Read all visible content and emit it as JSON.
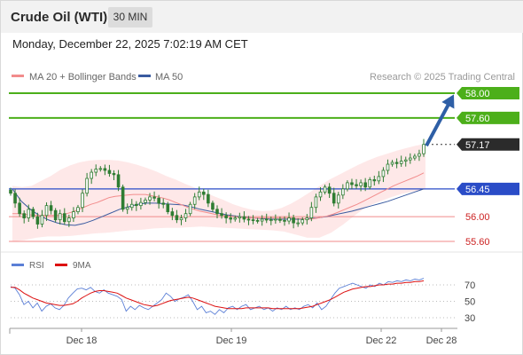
{
  "header": {
    "title": "Crude Oil (WTI)",
    "interval": "30 MIN",
    "datetime": "Monday, December 22, 2025 7:02:19 AM CET"
  },
  "colors": {
    "candle": "#2e7d32",
    "ma20": "#f28c8c",
    "ma50": "#3a5ba0",
    "bands_fill": "#fde0e0",
    "resistance": "#4caf1a",
    "pivot": "#2a4cc7",
    "support": "#f08a8a",
    "support_text": "#cc2222",
    "arrow": "#2e5fa6",
    "last_price_box": "#2b2b2b",
    "rsi": "#5b7fd6",
    "rsi_ma": "#dd1111"
  },
  "chart_data": [
    {
      "type": "candlestick",
      "title": "Crude Oil (WTI)",
      "interval": "30 MIN",
      "legend": [
        {
          "label": "MA 20 + Bollinger Bands",
          "color": "#f28c8c"
        },
        {
          "label": "MA 50",
          "color": "#3a5ba0"
        }
      ],
      "watermark": "Research © 2025 Trading Central",
      "xticks": [
        "Dec 18",
        "Dec 19",
        "Dec 22",
        "Dec 28"
      ],
      "ylim": [
        55.45,
        58.2
      ],
      "levels": [
        {
          "label": "58.00",
          "value": 58.0,
          "kind": "resistance"
        },
        {
          "label": "57.60",
          "value": 57.6,
          "kind": "resistance"
        },
        {
          "label": "57.17",
          "value": 57.17,
          "kind": "last"
        },
        {
          "label": "56.45",
          "value": 56.45,
          "kind": "pivot"
        },
        {
          "label": "56.00",
          "value": 56.0,
          "kind": "support"
        },
        {
          "label": "55.60",
          "value": 55.6,
          "kind": "support"
        }
      ],
      "arrow": {
        "from": 57.15,
        "to": 57.98
      },
      "close": [
        56.38,
        56.22,
        56.05,
        55.98,
        56.12,
        56.0,
        55.88,
        56.02,
        56.18,
        56.1,
        55.95,
        56.05,
        55.92,
        55.98,
        56.08,
        56.15,
        56.38,
        56.62,
        56.72,
        56.77,
        56.78,
        56.75,
        56.7,
        56.68,
        56.48,
        56.12,
        56.15,
        56.2,
        56.18,
        56.23,
        56.27,
        56.32,
        56.3,
        56.22,
        56.2,
        56.08,
        56.02,
        55.95,
        55.98,
        56.05,
        56.2,
        56.32,
        56.4,
        56.36,
        56.22,
        56.12,
        56.05,
        56.02,
        55.98,
        55.96,
        55.98,
        56.0,
        55.96,
        55.95,
        55.94,
        55.93,
        55.96,
        55.95,
        55.95,
        55.96,
        55.94,
        55.93,
        55.98,
        55.9,
        55.9,
        55.95,
        55.98,
        56.15,
        56.32,
        56.4,
        56.48,
        56.38,
        56.22,
        56.35,
        56.45,
        56.55,
        56.52,
        56.5,
        56.55,
        56.48,
        56.6,
        56.58,
        56.65,
        56.75,
        56.85,
        56.88,
        56.86,
        56.9,
        56.92,
        56.95,
        56.98,
        57.02,
        57.17
      ],
      "ma20": [
        56.05,
        56.05,
        56.04,
        56.03,
        56.02,
        56.02,
        56.02,
        56.02,
        56.03,
        56.05,
        56.08,
        56.12,
        56.16,
        56.2,
        56.23,
        56.27,
        56.31,
        56.33,
        56.34,
        56.35,
        56.36,
        56.36,
        56.36,
        56.34,
        56.32,
        56.3,
        56.27,
        56.23,
        56.19,
        56.15,
        56.12,
        56.09,
        56.07,
        56.05,
        56.03,
        56.02,
        56.01,
        56.0,
        55.99,
        55.98,
        55.98,
        55.98,
        55.98,
        55.98,
        55.98,
        55.98,
        55.98,
        55.97,
        55.97,
        55.96,
        55.97,
        55.99,
        56.01,
        56.04,
        56.08,
        56.12,
        56.16,
        56.2,
        56.25,
        56.3,
        56.35,
        56.4,
        56.45,
        56.5,
        56.54,
        56.58,
        56.62,
        56.66,
        56.71
      ],
      "bb_upper": [
        56.5,
        56.48,
        56.5,
        56.58,
        56.66,
        56.76,
        56.83,
        56.88,
        56.91,
        56.92,
        56.92,
        56.91,
        56.88,
        56.84,
        56.79,
        56.73,
        56.66,
        56.6,
        56.53,
        56.47,
        56.4,
        56.33,
        56.27,
        56.2,
        56.15,
        56.11,
        56.09,
        56.1,
        56.14,
        56.21,
        56.3,
        56.4,
        56.5,
        56.6,
        56.68,
        56.76,
        56.84,
        56.91,
        56.97,
        57.02,
        57.07,
        57.11,
        57.15,
        57.18
      ],
      "bb_lower": [
        55.6,
        55.62,
        55.66,
        55.68,
        55.68,
        55.69,
        55.71,
        55.73,
        55.74,
        55.76,
        55.78,
        55.79,
        55.81,
        55.82,
        55.82,
        55.83,
        55.84,
        55.83,
        55.82,
        55.81,
        55.8,
        55.79,
        55.78,
        55.76,
        55.71,
        55.66,
        55.66,
        55.74,
        55.87,
        56.02,
        56.16,
        56.24,
        56.31,
        56.37,
        56.41,
        56.44
      ],
      "ma50": [
        56.45,
        56.25,
        56.12,
        56.02,
        55.95,
        55.9,
        55.87,
        55.86,
        55.89,
        55.94,
        56.0,
        56.06,
        56.12,
        56.16,
        56.2,
        56.22,
        56.22,
        56.21,
        56.2,
        56.19,
        56.16,
        56.12,
        56.09,
        56.06,
        56.03,
        56.01,
        55.99,
        55.98,
        55.97,
        55.96,
        55.96,
        55.96,
        55.96,
        55.97,
        55.98,
        56.0,
        56.03,
        56.06,
        56.09,
        56.13,
        56.17,
        56.21,
        56.25,
        56.3,
        56.35,
        56.4,
        56.45
      ]
    },
    {
      "type": "line",
      "title": "RSI",
      "legend": [
        {
          "label": "RSI",
          "color": "#5b7fd6"
        },
        {
          "label": "9MA",
          "color": "#dd1111"
        }
      ],
      "yticks": [
        "70",
        "50",
        "30"
      ],
      "ylim": [
        20,
        80
      ],
      "rsi": [
        68,
        66,
        58,
        46,
        50,
        42,
        48,
        38,
        44,
        47,
        42,
        40,
        45,
        54,
        60,
        65,
        66,
        64,
        67,
        62,
        60,
        64,
        60,
        58,
        56,
        52,
        38,
        44,
        40,
        45,
        42,
        40,
        44,
        48,
        52,
        60,
        56,
        50,
        53,
        55,
        58,
        50,
        40,
        44,
        36,
        38,
        34,
        40,
        36,
        42,
        44,
        40,
        44,
        46,
        40,
        42,
        44,
        40,
        42,
        38,
        42,
        40,
        44,
        40,
        42,
        40,
        44,
        46,
        42,
        48,
        40,
        44,
        52,
        60,
        66,
        68,
        70,
        72,
        70,
        68,
        66,
        70,
        68,
        72,
        70,
        74,
        73,
        75,
        74,
        76,
        75,
        77,
        76,
        78
      ],
      "ma": [
        67,
        67,
        64,
        60,
        57,
        54,
        52,
        50,
        48,
        47,
        46,
        45,
        45,
        46,
        47,
        50,
        54,
        57,
        60,
        62,
        63,
        63,
        62,
        61,
        60,
        57,
        54,
        52,
        50,
        48,
        46,
        45,
        44,
        45,
        47,
        49,
        51,
        52,
        53,
        54,
        55,
        54,
        52,
        50,
        48,
        46,
        44,
        43,
        42,
        41,
        41,
        41,
        41,
        42,
        42,
        42,
        42,
        42,
        42,
        41,
        41,
        41,
        41,
        41,
        41,
        41,
        42,
        43,
        44,
        46,
        48,
        50,
        52,
        55,
        58,
        61,
        63,
        65,
        66,
        67,
        68,
        68,
        69,
        70,
        70,
        71,
        71,
        72,
        72,
        73,
        73,
        74,
        74,
        75
      ]
    }
  ]
}
